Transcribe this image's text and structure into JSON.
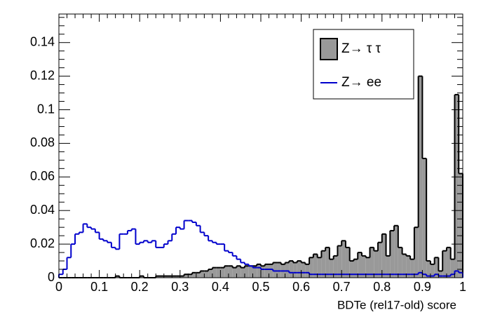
{
  "chart_data": {
    "type": "histogram",
    "xlabel": "BDTe (rel17-old) score",
    "bins": [
      0,
      0.01,
      0.02,
      0.03,
      0.04,
      0.05,
      0.06,
      0.07,
      0.08,
      0.09,
      0.1,
      0.11,
      0.12,
      0.13,
      0.14,
      0.15,
      0.16,
      0.17,
      0.18,
      0.19,
      0.2,
      0.21,
      0.22,
      0.23,
      0.24,
      0.25,
      0.26,
      0.27,
      0.28,
      0.29,
      0.3,
      0.31,
      0.32,
      0.33,
      0.34,
      0.35,
      0.36,
      0.37,
      0.38,
      0.39,
      0.4,
      0.41,
      0.42,
      0.43,
      0.44,
      0.45,
      0.46,
      0.47,
      0.48,
      0.49,
      0.5,
      0.51,
      0.52,
      0.53,
      0.54,
      0.55,
      0.56,
      0.57,
      0.58,
      0.59,
      0.6,
      0.61,
      0.62,
      0.63,
      0.64,
      0.65,
      0.66,
      0.67,
      0.68,
      0.69,
      0.7,
      0.71,
      0.72,
      0.73,
      0.74,
      0.75,
      0.76,
      0.77,
      0.78,
      0.79,
      0.8,
      0.81,
      0.82,
      0.83,
      0.84,
      0.85,
      0.86,
      0.87,
      0.88,
      0.89,
      0.9,
      0.91,
      0.92,
      0.93,
      0.94,
      0.95,
      0.96,
      0.97,
      0.98,
      0.99,
      1
    ],
    "series": [
      {
        "name": "Z→ τ τ",
        "color": "#999999",
        "style": "filled",
        "values": [
          0,
          0,
          0,
          0,
          0,
          0,
          0,
          0,
          0,
          0,
          0,
          0,
          0,
          0,
          0.001,
          0,
          0,
          0,
          0,
          0,
          0.001,
          0,
          0,
          0,
          0.001,
          0.001,
          0.001,
          0.001,
          0.001,
          0.001,
          0.001,
          0.002,
          0.002,
          0.003,
          0.003,
          0.004,
          0.004,
          0.005,
          0.006,
          0.006,
          0.006,
          0.007,
          0.007,
          0.006,
          0.007,
          0.006,
          0.007,
          0.007,
          0.007,
          0.008,
          0.007,
          0.008,
          0.008,
          0.009,
          0.009,
          0.008,
          0.009,
          0.01,
          0.009,
          0.01,
          0.009,
          0.008,
          0.012,
          0.014,
          0.012,
          0.016,
          0.018,
          0.011,
          0.013,
          0.019,
          0.022,
          0.018,
          0.01,
          0.011,
          0.015,
          0.013,
          0.012,
          0.018,
          0.016,
          0.021,
          0.026,
          0.013,
          0.028,
          0.031,
          0.018,
          0.014,
          0.013,
          0.011,
          0.03,
          0.12,
          0.071,
          0.01,
          0.008,
          0.012,
          0.004,
          0.016,
          0.018,
          0.011,
          0.109,
          0.062
        ]
      },
      {
        "name": "Z→ ee",
        "color": "#0000cc",
        "style": "line",
        "values": [
          0.002,
          0.005,
          0.012,
          0.02,
          0.026,
          0.027,
          0.032,
          0.03,
          0.029,
          0.027,
          0.023,
          0.022,
          0.021,
          0.018,
          0.017,
          0.026,
          0.026,
          0.028,
          0.029,
          0.02,
          0.021,
          0.022,
          0.021,
          0.022,
          0.018,
          0.018,
          0.02,
          0.022,
          0.026,
          0.03,
          0.029,
          0.034,
          0.034,
          0.033,
          0.031,
          0.027,
          0.025,
          0.022,
          0.021,
          0.02,
          0.02,
          0.016,
          0.015,
          0.013,
          0.011,
          0.009,
          0.008,
          0.007,
          0.006,
          0.006,
          0.005,
          0.005,
          0.005,
          0.004,
          0.004,
          0.004,
          0.004,
          0.003,
          0.003,
          0.003,
          0.003,
          0.003,
          0.002,
          0.002,
          0.002,
          0.002,
          0.002,
          0.002,
          0.002,
          0.002,
          0.002,
          0.002,
          0.002,
          0.002,
          0.002,
          0.002,
          0.002,
          0.002,
          0.002,
          0.002,
          0.002,
          0.002,
          0.002,
          0.002,
          0.002,
          0.002,
          0.002,
          0.002,
          0.002,
          0.003,
          0.002,
          0.001,
          0.001,
          0.002,
          0.001,
          0.001,
          0.001,
          0.002,
          0.004,
          0.003
        ]
      }
    ],
    "xlim": [
      0,
      1
    ],
    "xticks": [
      0,
      0.1,
      0.2,
      0.3,
      0.4,
      0.5,
      0.6,
      0.7,
      0.8,
      0.9,
      1
    ],
    "ylim": [
      0,
      0.157
    ],
    "yticks": [
      0,
      0.02,
      0.04,
      0.06,
      0.08,
      0.1,
      0.12,
      0.14
    ],
    "legend": "top-right"
  }
}
